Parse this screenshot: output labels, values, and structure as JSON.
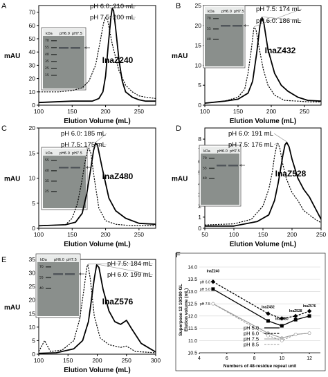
{
  "figure": {
    "panels": [
      {
        "letter": "A",
        "ylabel": "mAU",
        "xlabel": "Elution Volume (mL)",
        "xlim": [
          100,
          275
        ],
        "ylim": [
          0,
          75
        ],
        "xticks": [
          "100",
          "150",
          "200",
          "250"
        ],
        "yticks": [
          "0",
          "10",
          "20",
          "30",
          "40",
          "50",
          "60",
          "70"
        ],
        "name": "InaZ240",
        "ann1": "pH 6.0: 210 mL",
        "ann2": "pH 7.5: 200 mL",
        "gel": {
          "kda": "kDa",
          "lane1": "pH6.0",
          "lane2": "pH7.5",
          "markers": [
            "70",
            "55",
            "40",
            "35",
            "25",
            "15"
          ]
        }
      },
      {
        "letter": "B",
        "ylabel": "mAU",
        "xlabel": "Elution Volume (mL)",
        "xlim": [
          100,
          275
        ],
        "ylim": [
          0,
          25
        ],
        "xticks": [
          "100",
          "150",
          "200",
          "250"
        ],
        "yticks": [
          "0",
          "5",
          "10",
          "15",
          "20",
          "25"
        ],
        "name": "InaZ432",
        "ann1": "pH 7.5: 174 mL",
        "ann2": "pH 6.0: 186 mL",
        "gel": {
          "kda": "kDa",
          "lane1": "pH6.0",
          "lane2": "pH7.5",
          "markers": [
            "70",
            "55",
            "40"
          ]
        }
      },
      {
        "letter": "C",
        "ylabel": "mAU",
        "xlabel": "Elution Volume (mL)",
        "xlim": [
          100,
          275
        ],
        "ylim": [
          0,
          20
        ],
        "xticks": [
          "100",
          "150",
          "200",
          "250"
        ],
        "yticks": [
          "0",
          "5",
          "10",
          "15",
          "20"
        ],
        "name": "InaZ480",
        "ann1": "pH 6.0: 185 mL",
        "ann2": "pH 7.5: 175 mL",
        "gel": {
          "kda": "kDa",
          "lane1": "pH6.0",
          "lane2": "pH7.5",
          "markers": [
            "55",
            "40",
            "35",
            "25"
          ]
        }
      },
      {
        "letter": "D",
        "ylabel": "mAU",
        "xlabel": "Elution Volume (mL)",
        "xlim": [
          50,
          250
        ],
        "ylim": [
          0,
          9
        ],
        "xticks": [
          "50",
          "100",
          "150",
          "200",
          "250"
        ],
        "yticks": [
          "0",
          "1",
          "2",
          "3",
          "4",
          "5",
          "6",
          "7",
          "8"
        ],
        "name": "InaZ528",
        "ann1": "pH 6.0: 191 mL",
        "ann2": "pH 7.5: 176 mL",
        "gel": {
          "kda": "kDa",
          "lane1": "pH6.0",
          "lane2": "pH7.5",
          "markers": [
            "70",
            "55",
            "40"
          ]
        }
      },
      {
        "letter": "E",
        "ylabel": "mAU",
        "xlabel": "Elution Volume (mL)",
        "xlim": [
          100,
          300
        ],
        "ylim": [
          0,
          35
        ],
        "xticks": [
          "100",
          "150",
          "200",
          "250",
          "300"
        ],
        "yticks": [
          "0",
          "5",
          "10",
          "15",
          "20",
          "25",
          "30",
          "35"
        ],
        "name": "InaZ576",
        "ann1": "pH 7.5: 184 mL",
        "ann2": "pH 6.0: 199 mL",
        "gel": {
          "kda": "kDa",
          "lane1": "pH6.0",
          "lane2": "pH7.5",
          "markers": [
            "70",
            "55",
            "40"
          ]
        }
      }
    ]
  },
  "panel_f": {
    "letter": "F",
    "ylabel1": "Superpose 12 10/300 GL",
    "ylabel2": "Elution volume (mL)",
    "xlabel": "Numbers of 48-residue repeat unit",
    "xticks": [
      "4",
      "6",
      "8",
      "10",
      "12"
    ],
    "yticks": [
      "10.5",
      "11.0",
      "11.5",
      "12.0",
      "12.5",
      "13.0",
      "13.5",
      "14.0"
    ],
    "labels": [
      "InaZ240",
      "InaZ432",
      "InaZ480",
      "InaZ528",
      "InaZ576"
    ],
    "start_labels": [
      "pH 6.0",
      "pH 5.0",
      "pH 7.5"
    ],
    "legend": [
      "pH 5.0",
      "pH 6.0",
      "pH 7.5",
      "pH 8.5"
    ]
  },
  "chart_data": [
    {
      "type": "line",
      "title": "A",
      "name": "InaZ240",
      "xlabel": "Elution Volume (mL)",
      "ylabel": "mAU",
      "xlim": [
        100,
        275
      ],
      "ylim": [
        0,
        75
      ],
      "series": [
        {
          "name": "pH 6.0",
          "x": [
            100,
            150,
            180,
            190,
            196,
            200,
            204,
            208,
            210,
            212,
            215,
            220,
            225,
            230,
            240,
            250,
            260,
            275
          ],
          "y": [
            2,
            3,
            3,
            5,
            10,
            22,
            45,
            66,
            73,
            71,
            58,
            34,
            18,
            10,
            6,
            4,
            3,
            3
          ]
        },
        {
          "name": "pH 7.5",
          "x": [
            100,
            130,
            150,
            165,
            175,
            185,
            192,
            197,
            200,
            203,
            210,
            220,
            230,
            240,
            250,
            260,
            275
          ],
          "y": [
            10,
            10,
            11,
            13,
            18,
            30,
            48,
            62,
            66,
            64,
            46,
            26,
            15,
            10,
            7,
            6,
            5
          ]
        }
      ]
    },
    {
      "type": "line",
      "title": "B",
      "name": "InaZ432",
      "xlabel": "Elution Volume (mL)",
      "ylabel": "mAU",
      "xlim": [
        100,
        275
      ],
      "ylim": [
        0,
        25
      ],
      "series": [
        {
          "name": "pH 6.0",
          "x": [
            100,
            130,
            150,
            165,
            172,
            178,
            183,
            186,
            189,
            195,
            205,
            215,
            225,
            240,
            255,
            275
          ],
          "y": [
            0.5,
            1,
            1.5,
            3,
            6,
            13,
            20,
            22,
            20.5,
            14,
            8,
            5,
            3.5,
            2,
            1.2,
            1
          ]
        },
        {
          "name": "pH 7.5",
          "x": [
            100,
            130,
            150,
            160,
            165,
            170,
            174,
            177,
            181,
            188,
            195,
            205,
            220,
            240,
            260,
            275
          ],
          "y": [
            0.5,
            1,
            2,
            4,
            8,
            14,
            19.5,
            19,
            15,
            9,
            5,
            2.5,
            1.2,
            1,
            0.8,
            0.8
          ]
        }
      ]
    },
    {
      "type": "line",
      "title": "C",
      "name": "InaZ480",
      "xlabel": "Elution Volume (mL)",
      "ylabel": "mAU",
      "xlim": [
        100,
        275
      ],
      "ylim": [
        0,
        20
      ],
      "series": [
        {
          "name": "pH 6.0",
          "x": [
            100,
            140,
            155,
            165,
            172,
            178,
            182,
            185,
            188,
            195,
            205,
            215,
            230,
            250,
            275
          ],
          "y": [
            0.5,
            0.7,
            1.2,
            3,
            7,
            12,
            15.5,
            17,
            16.5,
            12,
            6,
            3.5,
            2,
            1,
            0.8
          ]
        },
        {
          "name": "pH 7.5",
          "x": [
            100,
            140,
            150,
            158,
            164,
            169,
            173,
            175,
            178,
            183,
            190,
            200,
            215,
            240,
            275
          ],
          "y": [
            0.5,
            0.7,
            2,
            5,
            9,
            13,
            15.5,
            16,
            15,
            10,
            4,
            1.5,
            0.8,
            0.5,
            0.5
          ]
        }
      ]
    },
    {
      "type": "line",
      "title": "D",
      "name": "InaZ528",
      "xlabel": "Elution Volume (mL)",
      "ylabel": "mAU",
      "xlim": [
        50,
        250
      ],
      "ylim": [
        0,
        9
      ],
      "series": [
        {
          "name": "pH 6.0",
          "x": [
            50,
            100,
            140,
            160,
            170,
            176,
            180,
            184,
            188,
            191,
            195,
            200,
            210,
            220,
            230,
            240,
            250
          ],
          "y": [
            0.2,
            0.2,
            0.6,
            1.2,
            2.5,
            4,
            5.2,
            6.5,
            7.5,
            7.7,
            7.3,
            6.2,
            4.5,
            3.5,
            2.8,
            1.8,
            0.8
          ]
        },
        {
          "name": "pH 7.5",
          "x": [
            50,
            100,
            130,
            150,
            160,
            166,
            170,
            174,
            176,
            179,
            183,
            190,
            200,
            210,
            220,
            230,
            240,
            250
          ],
          "y": [
            0.3,
            0.4,
            0.8,
            2,
            3.5,
            5,
            6.5,
            7.5,
            7.6,
            7.2,
            6,
            4.5,
            3.2,
            2.5,
            1.6,
            1.2,
            0.8,
            0.5
          ]
        }
      ]
    },
    {
      "type": "line",
      "title": "E",
      "name": "InaZ576",
      "xlabel": "Elution Volume (mL)",
      "ylabel": "mAU",
      "xlim": [
        100,
        300
      ],
      "ylim": [
        0,
        35
      ],
      "series": [
        {
          "name": "pH 6.0",
          "x": [
            100,
            130,
            160,
            175,
            185,
            190,
            195,
            199,
            203,
            210,
            220,
            230,
            240,
            250,
            260,
            275,
            300
          ],
          "y": [
            0.3,
            0.5,
            2,
            5,
            12,
            20,
            28,
            33,
            32,
            24,
            16,
            12,
            11,
            12.5,
            9,
            4,
            0.8
          ]
        },
        {
          "name": "pH 7.5",
          "x": [
            100,
            105,
            110,
            115,
            120,
            140,
            160,
            170,
            178,
            182,
            184,
            188,
            195,
            205,
            220,
            240,
            250,
            265,
            300
          ],
          "y": [
            1,
            3,
            5,
            3,
            1,
            1.5,
            5,
            13,
            25,
            32,
            33,
            28,
            14,
            6,
            3.5,
            2.5,
            3,
            1,
            0.5
          ]
        }
      ]
    },
    {
      "type": "line",
      "title": "F",
      "xlabel": "Numbers of 48-residue repeat unit",
      "ylabel": "Superpose 12 10/300 GL Elution volume (mL)",
      "xlim": [
        4,
        12.8
      ],
      "ylim": [
        10.5,
        14.0
      ],
      "x": [
        5,
        9,
        10,
        11,
        12
      ],
      "series": [
        {
          "name": "pH 5.0",
          "y": [
            13.1,
            11.8,
            11.6,
            11.85,
            12.0
          ]
        },
        {
          "name": "pH 6.0",
          "y": [
            13.4,
            12.1,
            11.9,
            12.0,
            12.2
          ]
        },
        {
          "name": "pH 7.5",
          "y": [
            12.5,
            11.3,
            11.1,
            11.25,
            11.3
          ]
        },
        {
          "name": "pH 8.5",
          "y": [
            12.5,
            11.2,
            11.0,
            11.25,
            11.3
          ]
        }
      ]
    }
  ]
}
